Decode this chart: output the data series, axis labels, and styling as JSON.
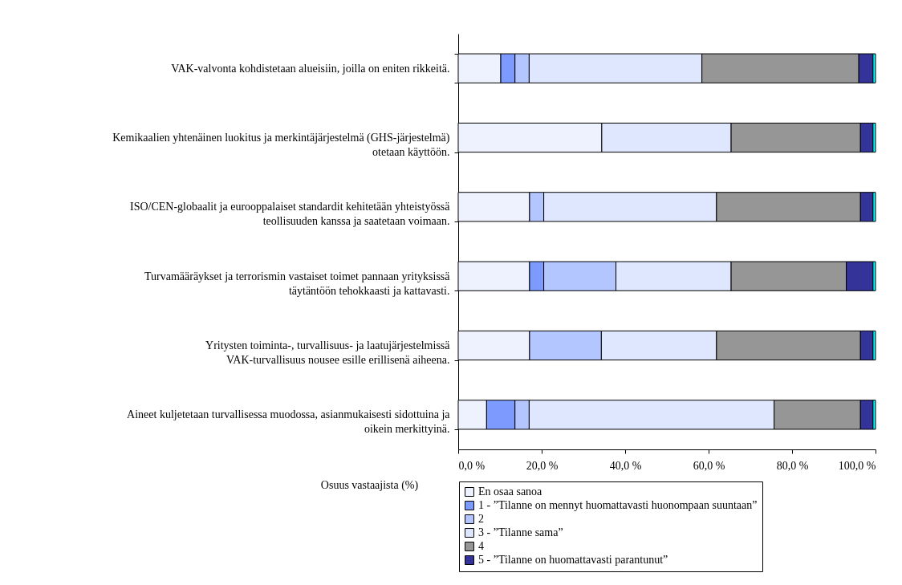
{
  "chart_data": {
    "type": "bar",
    "orientation": "horizontal",
    "stacked": true,
    "categories": [
      "VAK-valvonta kohdistetaan alueisiin, joilla on eniten rikkeitä.",
      "Kemikaalien yhtenäinen luokitus ja merkintäjärjestelmä (GHS-järjestelmä) otetaan käyttöön.",
      "ISO/CEN-globaalit ja eurooppalaiset standardit kehitetään yhteistyössä teollisuuden kanssa ja saatetaan voimaan.",
      "Turvamääräykset ja terrorismin vastaiset toimet pannaan yrityksissä täytäntöön tehokkaasti ja kattavasti.",
      "Yritysten toiminta-, turvallisuus- ja laatujärjestelmissä VAK-turvallisuus nousee esille erillisenä aiheena.",
      "Aineet kuljetetaan turvallisessa muodossa, asianmukaisesti sidottuina ja oikein merkittyinä."
    ],
    "series": [
      {
        "name": "En osaa sanoa",
        "color": "#eef2ff",
        "values": [
          10.2,
          34.4,
          17.1,
          17.1,
          17.1,
          6.8
        ]
      },
      {
        "name": "1 - ”Tilanne on mennyt huomattavasti huonompaan suuntaan”",
        "color": "#7d9bff",
        "values": [
          3.4,
          0,
          0,
          3.4,
          0,
          6.8
        ]
      },
      {
        "name": "2",
        "color": "#b4c6ff",
        "values": [
          3.4,
          0,
          3.4,
          17.3,
          17.2,
          3.4
        ]
      },
      {
        "name": "3 - ”Tilanne sama”",
        "color": "#dfe7ff",
        "values": [
          41.4,
          31.0,
          41.4,
          27.6,
          27.6,
          58.7
        ]
      },
      {
        "name": "4",
        "color": "#969696",
        "values": [
          37.6,
          31.0,
          34.5,
          27.6,
          34.5,
          20.7
        ]
      },
      {
        "name": "5 - ”Tilanne on huomattavasti parantunut”",
        "color": "#333399",
        "values": [
          3.4,
          3.0,
          3.0,
          6.4,
          3.0,
          3.0
        ]
      },
      {
        "color": "#00ffff",
        "values": [
          0.6,
          0.6,
          0.6,
          0.6,
          0.6,
          0.6
        ]
      }
    ],
    "xlabel": "Osuus vastaajista (%)",
    "xlim": [
      0,
      100
    ],
    "xticks": [
      {
        "value": 0,
        "label": "0,0 %"
      },
      {
        "value": 20,
        "label": "20,0 %"
      },
      {
        "value": 40,
        "label": "40,0 %"
      },
      {
        "value": 60,
        "label": "60,0 %"
      },
      {
        "value": 80,
        "label": "80,0 %"
      },
      {
        "value": 100,
        "label": "100,0 %"
      }
    ],
    "grid": false,
    "legend": "bottom"
  }
}
